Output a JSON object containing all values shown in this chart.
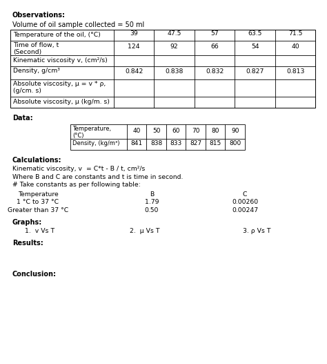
{
  "observations_title": "Observations:",
  "observations_text": "Volume of oil sample collected = 50 ml",
  "main_table": {
    "row_labels": [
      "Temperature of the oil, (°C)",
      "Time of flow, t\n(Second)",
      "Kinematic viscosity v, (cm²/s)",
      "Density, g/cm³",
      "Absolute viscosity, μ = v * ρ,\n(g/cm. s)",
      "Absolute viscosity, μ (kg/m. s)"
    ],
    "col_values": [
      [
        "39",
        "124",
        "",
        "0.842",
        "",
        ""
      ],
      [
        "47.5",
        "92",
        "",
        "0.838",
        "",
        ""
      ],
      [
        "57",
        "66",
        "",
        "0.832",
        "",
        ""
      ],
      [
        "63.5",
        "54",
        "",
        "0.827",
        "",
        ""
      ],
      [
        "71.5",
        "40",
        "",
        "0.813",
        "",
        ""
      ]
    ]
  },
  "data_title": "Data:",
  "data_table": {
    "headers": [
      "Temperature,\n(°C)",
      "40",
      "50",
      "60",
      "70",
      "80",
      "90"
    ],
    "row2": [
      "Density, (kg/m³)",
      "841",
      "838",
      "833",
      "827",
      "815",
      "800"
    ]
  },
  "calc_title": "Calculations:",
  "calc_line1": "Kinematic viscosity, v  = C*t - B / t, cm²/s",
  "calc_line2": "Where B and C are constants and t is time in second.",
  "calc_line3": "# Take constants as per following table:",
  "constants_header": [
    "Temperature",
    "B",
    "C"
  ],
  "constants_row1": [
    "1 °C to 37 °C",
    "1.79",
    "0.00260"
  ],
  "constants_row2": [
    "Greater than 37 °C",
    "0.50",
    "0.00247"
  ],
  "graphs_title": "Graphs:",
  "graphs_items": [
    "1.  v Vs T",
    "2.  μ Vs T",
    "3. ρ Vs T"
  ],
  "results_title": "Results:",
  "conclusion_title": "Conclusion:",
  "bg_color": "#ffffff",
  "text_color": "#000000",
  "table_border_color": "#000000",
  "font_size": 7.0,
  "fig_w": 4.74,
  "fig_h": 5.27,
  "dpi": 100
}
